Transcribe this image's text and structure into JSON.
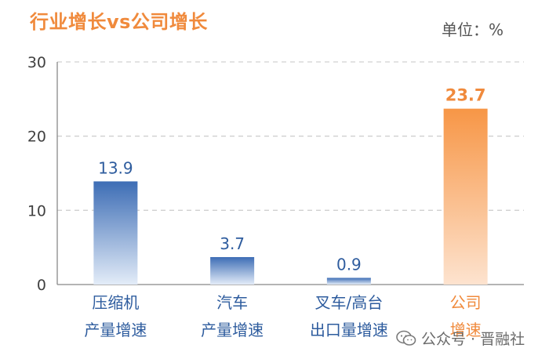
{
  "header": {
    "title": "行业增长vs公司增长",
    "unit_label": "单位：%"
  },
  "watermark": {
    "text": "公众号 · 晋融社",
    "icon": "wechat-icon"
  },
  "colors": {
    "industry_bar": "#4e7fc4",
    "company_bar": "#f79646",
    "industry_text": "#2e5c9e",
    "company_text": "#f08a3c",
    "axis_text": "#404040",
    "grid": "#d0d0d0"
  },
  "chart_data": {
    "type": "bar",
    "title": "行业增长vs公司增长",
    "ylabel": "单位：%",
    "ylim": [
      0,
      30
    ],
    "yticks": [
      "0",
      "10",
      "20",
      "30"
    ],
    "grid": true,
    "categories": [
      [
        "压缩机",
        "产量增速"
      ],
      [
        "汽车",
        "产量增速"
      ],
      [
        "叉车/高台",
        "出口量增速"
      ],
      [
        "公司",
        "增速"
      ]
    ],
    "values": [
      13.9,
      3.7,
      0.9,
      23.7
    ],
    "data_labels": [
      "13.9",
      "3.7",
      "0.9",
      "23.7"
    ],
    "highlight_index": 3
  }
}
